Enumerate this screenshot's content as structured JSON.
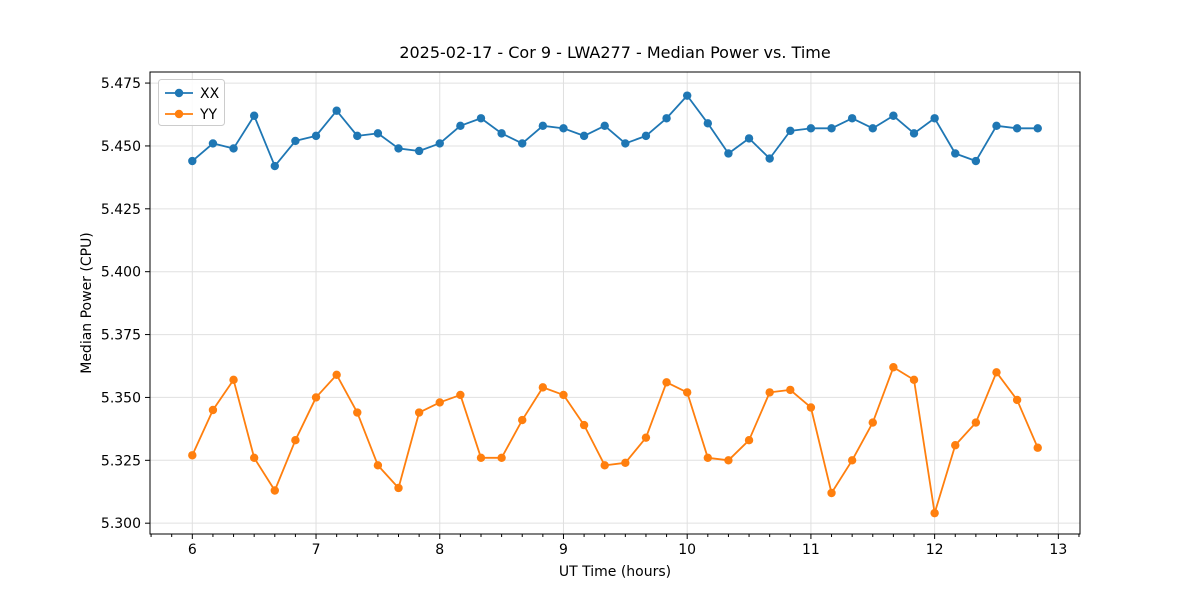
{
  "chart_data": {
    "type": "line",
    "title": "2025-02-17 - Cor 9 - LWA277 - Median Power vs. Time",
    "xlabel": "UT Time (hours)",
    "ylabel": "Median Power (CPU)",
    "xlim": [
      5.658,
      13.175
    ],
    "ylim": [
      5.2957,
      5.4794
    ],
    "grid": true,
    "legend_position": "upper left",
    "xticks": [
      6,
      7,
      8,
      9,
      10,
      11,
      12,
      13
    ],
    "xtick_labels": [
      "6",
      "7",
      "8",
      "9",
      "10",
      "11",
      "12",
      "13"
    ],
    "minor_xtick_step_hours": 0.16667,
    "yticks": [
      5.3,
      5.325,
      5.35,
      5.375,
      5.4,
      5.425,
      5.45,
      5.475
    ],
    "ytick_labels": [
      "5.300",
      "5.325",
      "5.350",
      "5.375",
      "5.400",
      "5.425",
      "5.450",
      "5.475"
    ],
    "x": [
      6.0,
      6.1667,
      6.3333,
      6.5,
      6.6667,
      6.8333,
      7.0,
      7.1667,
      7.3333,
      7.5,
      7.6667,
      7.8333,
      8.0,
      8.1667,
      8.3333,
      8.5,
      8.6667,
      8.8333,
      9.0,
      9.1667,
      9.3333,
      9.5,
      9.6667,
      9.8333,
      10.0,
      10.1667,
      10.3333,
      10.5,
      10.6667,
      10.8333,
      11.0,
      11.1667,
      11.3333,
      11.5,
      11.6667,
      11.8333,
      12.0,
      12.1667,
      12.3333,
      12.5,
      12.6667,
      12.8333
    ],
    "series": [
      {
        "name": "XX",
        "color": "#1f77b4",
        "values": [
          5.444,
          5.451,
          5.449,
          5.462,
          5.442,
          5.452,
          5.454,
          5.464,
          5.454,
          5.455,
          5.449,
          5.448,
          5.451,
          5.458,
          5.461,
          5.455,
          5.451,
          5.458,
          5.457,
          5.454,
          5.458,
          5.451,
          5.454,
          5.461,
          5.47,
          5.459,
          5.447,
          5.453,
          5.445,
          5.456,
          5.457,
          5.457,
          5.461,
          5.457,
          5.462,
          5.455,
          5.461,
          5.447,
          5.444,
          5.458,
          5.457,
          5.457
        ]
      },
      {
        "name": "YY",
        "color": "#ff7f0e",
        "values": [
          5.327,
          5.345,
          5.357,
          5.326,
          5.313,
          5.333,
          5.35,
          5.359,
          5.344,
          5.323,
          5.314,
          5.344,
          5.348,
          5.351,
          5.326,
          5.326,
          5.341,
          5.354,
          5.351,
          5.339,
          5.323,
          5.324,
          5.334,
          5.356,
          5.352,
          5.326,
          5.325,
          5.333,
          5.352,
          5.353,
          5.346,
          5.312,
          5.325,
          5.34,
          5.362,
          5.357,
          5.304,
          5.331,
          5.34,
          5.36,
          5.349,
          5.33
        ]
      }
    ]
  }
}
